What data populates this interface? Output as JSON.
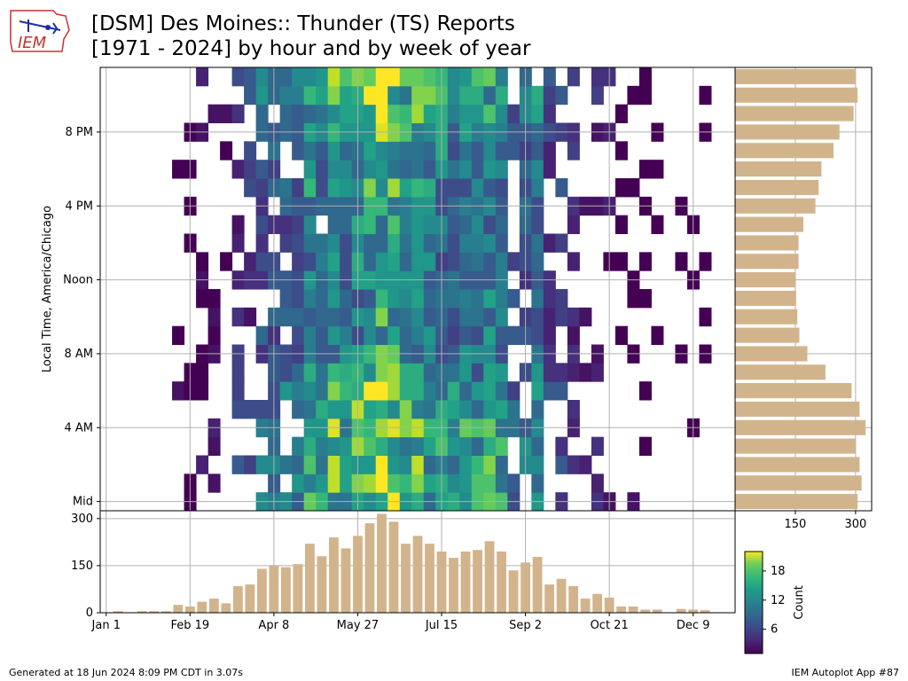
{
  "title": {
    "line1": "[DSM] Des Moines:: Thunder (TS) Reports",
    "line2": "[1971 - 2024] by hour and by week of year"
  },
  "logo": {
    "text": "IEM"
  },
  "footer": {
    "generated": "Generated at 18 Jun 2024 8:09 PM CDT in 3.07s",
    "app": "IEM Autoplot App #87"
  },
  "colors": {
    "bar": "#d2b48c",
    "grid": "#b0b0b0",
    "empty": "#ffffff"
  },
  "chart_data": [
    {
      "type": "heatmap",
      "ylabel": "Local Time, America/Chicago",
      "x_tick_labels": [
        "Jan 1",
        "Feb 19",
        "Apr 8",
        "May 27",
        "Jul 15",
        "Sep 2",
        "Oct 21",
        "Dec 9"
      ],
      "x_tick_weeks": [
        0,
        7,
        14,
        21,
        28,
        35,
        42,
        49
      ],
      "y_tick_labels": [
        "Mid",
        "4 AM",
        "8 AM",
        "Noon",
        "4 PM",
        "8 PM"
      ],
      "y_tick_hours": [
        0,
        4,
        8,
        12,
        16,
        20
      ],
      "weeks": 53,
      "hours": 24,
      "colormap": "viridis",
      "colorbar": {
        "label": "Count",
        "ticks": [
          6,
          12,
          18
        ],
        "range": [
          1,
          22
        ]
      }
    },
    {
      "type": "bar",
      "orientation": "vertical",
      "description_axis": "week of year",
      "yticks": [
        0,
        150,
        300
      ],
      "ylim": [
        0,
        325
      ],
      "values": [
        0,
        5,
        0,
        5,
        5,
        5,
        25,
        20,
        35,
        45,
        30,
        85,
        90,
        140,
        150,
        145,
        155,
        220,
        180,
        240,
        205,
        245,
        285,
        315,
        290,
        220,
        245,
        220,
        195,
        175,
        195,
        200,
        228,
        195,
        135,
        160,
        178,
        90,
        108,
        85,
        45,
        60,
        48,
        20,
        20,
        10,
        10,
        0,
        12,
        10,
        8,
        0,
        0
      ]
    },
    {
      "type": "bar",
      "orientation": "horizontal",
      "description_axis": "hour of day",
      "xticks": [
        150,
        300
      ],
      "xlim": [
        0,
        340
      ],
      "values": [
        305,
        315,
        310,
        300,
        325,
        310,
        290,
        225,
        180,
        160,
        155,
        152,
        150,
        158,
        158,
        170,
        200,
        208,
        215,
        245,
        260,
        295,
        305,
        300
      ]
    }
  ]
}
